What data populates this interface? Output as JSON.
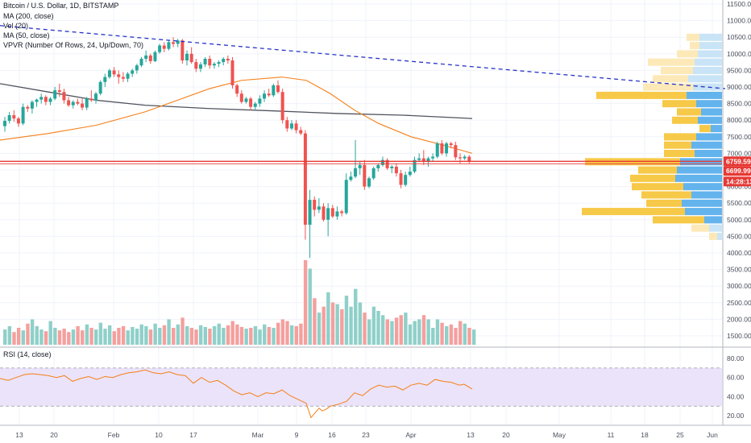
{
  "legend": {
    "title": "Bitcoin / U.S. Dollar, 1D, BITSTAMP",
    "ma200": "MA (200, close)",
    "vol": "Vol (20)",
    "ma50": "MA (50, close)",
    "vpvr": "VPVR (Number Of Rows, 24, Up/Down, 70)",
    "rsi": "RSI (14, close)"
  },
  "colors": {
    "up": "#26a69a",
    "down": "#ef5350",
    "ma200": "#50535e",
    "ma50": "#f57f17",
    "trendline": "#2734c8",
    "hline": "#e53935",
    "rsi": "#f57f17",
    "rsi_band": "#ebe3fa",
    "vpvr_up_val": "#63b3ed",
    "vpvr_dn_val": "#f7c948",
    "vpvr_up_out": "#c9e4f7",
    "vpvr_dn_out": "#fde9b8"
  },
  "price_axis": {
    "labels": [
      "11500.00",
      "11000.00",
      "10500.00",
      "10000.00",
      "9500.00",
      "9000.00",
      "8500.00",
      "8000.00",
      "7500.00",
      "7000.00",
      "6500.00",
      "6000.00",
      "5500.00",
      "5000.00",
      "4500.00",
      "4000.00",
      "3500.00",
      "3000.00",
      "2500.00",
      "2000.00",
      "1500.00"
    ],
    "tags": [
      {
        "text": "6759.59",
        "price": 6759.59,
        "color": "#e53935"
      },
      {
        "text": "6699.99",
        "price": 6470,
        "color": "#e53935"
      },
      {
        "text": "14:28:13",
        "price": 6150,
        "color": "#e53935"
      }
    ]
  },
  "rsi_axis": {
    "labels": [
      "80.00",
      "60.00",
      "40.00",
      "20.00"
    ]
  },
  "time_axis": {
    "labels": [
      "13",
      "20",
      "Feb",
      "10",
      "17",
      "Mar",
      "9",
      "16",
      "23",
      "Apr",
      "13",
      "20",
      "May",
      "11",
      "18",
      "25",
      "Jun"
    ]
  },
  "chart_data": {
    "type": "candlestick",
    "title": "Bitcoin / U.S. Dollar, 1D, BITSTAMP",
    "price_range": [
      1500,
      11500
    ],
    "candles_ohlc": [
      [
        7820,
        8100,
        7650,
        7980
      ],
      [
        7980,
        8250,
        7900,
        8150
      ],
      [
        8150,
        8300,
        7950,
        8050
      ],
      [
        8050,
        8100,
        7800,
        7900
      ],
      [
        7900,
        8500,
        7850,
        8400
      ],
      [
        8400,
        8450,
        8250,
        8350
      ],
      [
        8350,
        8600,
        8200,
        8550
      ],
      [
        8550,
        8650,
        8400,
        8620
      ],
      [
        8620,
        8800,
        8500,
        8700
      ],
      [
        8700,
        8750,
        8450,
        8550
      ],
      [
        8550,
        8700,
        8450,
        8650
      ],
      [
        8650,
        9000,
        8600,
        8900
      ],
      [
        8900,
        9100,
        8700,
        8850
      ],
      [
        8850,
        8950,
        8500,
        8600
      ],
      [
        8600,
        8700,
        8400,
        8450
      ],
      [
        8450,
        8600,
        8350,
        8550
      ],
      [
        8550,
        8650,
        8450,
        8500
      ],
      [
        8500,
        8650,
        8300,
        8380
      ],
      [
        8380,
        8700,
        8300,
        8650
      ],
      [
        8650,
        8900,
        8550,
        8600
      ],
      [
        8600,
        8850,
        8500,
        8800
      ],
      [
        8800,
        9200,
        8750,
        9150
      ],
      [
        9150,
        9400,
        9000,
        9300
      ],
      [
        9300,
        9550,
        9250,
        9500
      ],
      [
        9500,
        9600,
        9300,
        9380
      ],
      [
        9380,
        9500,
        9100,
        9300
      ],
      [
        9300,
        9450,
        9150,
        9250
      ],
      [
        9250,
        9450,
        9150,
        9400
      ],
      [
        9400,
        9550,
        9300,
        9500
      ],
      [
        9500,
        9700,
        9400,
        9650
      ],
      [
        9650,
        9900,
        9600,
        9850
      ],
      [
        9850,
        10100,
        9750,
        9950
      ],
      [
        9950,
        10000,
        9700,
        9780
      ],
      [
        9780,
        10100,
        9750,
        10050
      ],
      [
        10050,
        10300,
        10000,
        10250
      ],
      [
        10250,
        10350,
        10050,
        10150
      ],
      [
        10150,
        10400,
        10100,
        10350
      ],
      [
        10350,
        10500,
        10200,
        10300
      ],
      [
        10300,
        10450,
        10200,
        10400
      ],
      [
        10400,
        10450,
        9700,
        9800
      ],
      [
        9800,
        10100,
        9650,
        10000
      ],
      [
        10000,
        10200,
        9700,
        9750
      ],
      [
        9750,
        9850,
        9450,
        9550
      ],
      [
        9550,
        9750,
        9450,
        9680
      ],
      [
        9680,
        9900,
        9600,
        9850
      ],
      [
        9850,
        9950,
        9550,
        9650
      ],
      [
        9650,
        9750,
        9550,
        9700
      ],
      [
        9700,
        9800,
        9600,
        9750
      ],
      [
        9750,
        9900,
        9650,
        9850
      ],
      [
        9850,
        9950,
        9700,
        9800
      ],
      [
        9800,
        9900,
        8950,
        9050
      ],
      [
        9050,
        9100,
        8700,
        8800
      ],
      [
        8800,
        8900,
        8500,
        8550
      ],
      [
        8550,
        8700,
        8500,
        8650
      ],
      [
        8650,
        8700,
        8300,
        8400
      ],
      [
        8400,
        8550,
        8300,
        8500
      ],
      [
        8500,
        8750,
        8400,
        8650
      ],
      [
        8650,
        8900,
        8550,
        8800
      ],
      [
        8800,
        8950,
        8700,
        8750
      ],
      [
        8750,
        9100,
        8700,
        9050
      ],
      [
        9050,
        9200,
        8800,
        8850
      ],
      [
        8850,
        8950,
        7900,
        8000
      ],
      [
        8000,
        8100,
        7650,
        7750
      ],
      [
        7750,
        8000,
        7700,
        7900
      ],
      [
        7900,
        8000,
        7600,
        7700
      ],
      [
        7700,
        7800,
        7550,
        7600
      ],
      [
        7600,
        7700,
        4400,
        4850
      ],
      [
        4850,
        5900,
        3850,
        5600
      ],
      [
        5600,
        5700,
        5100,
        5300
      ],
      [
        5300,
        5650,
        5200,
        5400
      ],
      [
        5400,
        5500,
        4950,
        5000
      ],
      [
        5000,
        5500,
        4500,
        5350
      ],
      [
        5350,
        5450,
        5050,
        5100
      ],
      [
        5100,
        5400,
        5000,
        5250
      ],
      [
        5250,
        5300,
        5100,
        5200
      ],
      [
        5200,
        6400,
        5150,
        6200
      ],
      [
        6200,
        6450,
        6150,
        6300
      ],
      [
        6300,
        7400,
        6250,
        6550
      ],
      [
        6550,
        6750,
        6350,
        6650
      ],
      [
        6650,
        6800,
        5900,
        6000
      ],
      [
        6000,
        6300,
        5950,
        6250
      ],
      [
        6250,
        6600,
        6200,
        6550
      ],
      [
        6550,
        6700,
        6450,
        6650
      ],
      [
        6650,
        6900,
        6600,
        6800
      ],
      [
        6800,
        6850,
        6500,
        6550
      ],
      [
        6550,
        6650,
        6400,
        6600
      ],
      [
        6600,
        6700,
        6300,
        6400
      ],
      [
        6400,
        6500,
        5950,
        6050
      ],
      [
        6050,
        6450,
        6000,
        6350
      ],
      [
        6350,
        6600,
        6300,
        6450
      ],
      [
        6450,
        6900,
        6400,
        6800
      ],
      [
        6800,
        7000,
        6750,
        6850
      ],
      [
        6850,
        7100,
        6650,
        6750
      ],
      [
        6750,
        6900,
        6600,
        6850
      ],
      [
        6850,
        7000,
        6750,
        6900
      ],
      [
        6900,
        7350,
        6850,
        7300
      ],
      [
        7300,
        7400,
        6950,
        7000
      ],
      [
        7000,
        7350,
        6900,
        7300
      ],
      [
        7300,
        7350,
        7150,
        7250
      ],
      [
        7250,
        7350,
        6800,
        6880
      ],
      [
        6880,
        7000,
        6700,
        6850
      ],
      [
        6850,
        6950,
        6800,
        6900
      ],
      [
        6900,
        6950,
        6700,
        6760
      ]
    ],
    "ma200": [
      [
        0,
        9100
      ],
      [
        60,
        8850
      ],
      [
        120,
        8600
      ],
      [
        180,
        8450
      ],
      [
        260,
        8350
      ],
      [
        340,
        8280
      ],
      [
        420,
        8200
      ],
      [
        500,
        8150
      ],
      [
        586,
        8050
      ]
    ],
    "ma50": [
      [
        0,
        7400
      ],
      [
        60,
        7600
      ],
      [
        120,
        7850
      ],
      [
        180,
        8250
      ],
      [
        220,
        8600
      ],
      [
        260,
        8950
      ],
      [
        300,
        9200
      ],
      [
        350,
        9300
      ],
      [
        380,
        9200
      ],
      [
        410,
        8800
      ],
      [
        440,
        8300
      ],
      [
        470,
        7900
      ],
      [
        510,
        7500
      ],
      [
        550,
        7250
      ],
      [
        586,
        7000
      ]
    ],
    "volumes_scaled": [
      0.18,
      0.22,
      0.15,
      0.2,
      0.17,
      0.25,
      0.3,
      0.22,
      0.18,
      0.16,
      0.28,
      0.2,
      0.17,
      0.19,
      0.15,
      0.18,
      0.22,
      0.17,
      0.24,
      0.2,
      0.18,
      0.26,
      0.19,
      0.23,
      0.16,
      0.2,
      0.22,
      0.17,
      0.21,
      0.19,
      0.24,
      0.22,
      0.18,
      0.25,
      0.2,
      0.23,
      0.3,
      0.2,
      0.24,
      0.32,
      0.22,
      0.2,
      0.18,
      0.23,
      0.21,
      0.19,
      0.22,
      0.25,
      0.2,
      0.23,
      0.28,
      0.24,
      0.21,
      0.19,
      0.2,
      0.22,
      0.18,
      0.24,
      0.21,
      0.2,
      0.26,
      0.3,
      0.28,
      0.23,
      0.22,
      0.25,
      1.0,
      0.9,
      0.55,
      0.38,
      0.45,
      0.62,
      0.5,
      0.48,
      0.42,
      0.58,
      0.45,
      0.66,
      0.5,
      0.38,
      0.3,
      0.45,
      0.4,
      0.35,
      0.3,
      0.28,
      0.32,
      0.35,
      0.38,
      0.24,
      0.28,
      0.3,
      0.35,
      0.3,
      0.2,
      0.3,
      0.26,
      0.22,
      0.24,
      0.2,
      0.28,
      0.25,
      0.2,
      0.18
    ],
    "rsi_range": [
      10,
      80
    ],
    "rsi_levels": [
      70,
      30
    ],
    "rsi": [
      [
        0,
        59
      ],
      [
        10,
        57
      ],
      [
        20,
        60
      ],
      [
        30,
        63
      ],
      [
        40,
        64
      ],
      [
        50,
        63
      ],
      [
        60,
        62
      ],
      [
        70,
        60
      ],
      [
        80,
        62
      ],
      [
        90,
        56
      ],
      [
        100,
        59
      ],
      [
        110,
        61
      ],
      [
        120,
        58
      ],
      [
        130,
        61
      ],
      [
        140,
        60
      ],
      [
        150,
        63
      ],
      [
        160,
        65
      ],
      [
        170,
        66
      ],
      [
        180,
        68
      ],
      [
        190,
        65
      ],
      [
        200,
        64
      ],
      [
        210,
        66
      ],
      [
        220,
        63
      ],
      [
        230,
        62
      ],
      [
        240,
        54
      ],
      [
        250,
        60
      ],
      [
        260,
        55
      ],
      [
        270,
        57
      ],
      [
        280,
        52
      ],
      [
        290,
        46
      ],
      [
        300,
        42
      ],
      [
        310,
        44
      ],
      [
        320,
        40
      ],
      [
        330,
        44
      ],
      [
        340,
        43
      ],
      [
        350,
        47
      ],
      [
        360,
        41
      ],
      [
        370,
        37
      ],
      [
        380,
        33
      ],
      [
        386,
        18
      ],
      [
        390,
        22
      ],
      [
        396,
        28
      ],
      [
        400,
        25
      ],
      [
        405,
        27
      ],
      [
        410,
        30
      ],
      [
        420,
        32
      ],
      [
        430,
        35
      ],
      [
        440,
        44
      ],
      [
        450,
        41
      ],
      [
        460,
        48
      ],
      [
        470,
        52
      ],
      [
        480,
        50
      ],
      [
        490,
        51
      ],
      [
        500,
        47
      ],
      [
        510,
        52
      ],
      [
        520,
        54
      ],
      [
        530,
        52
      ],
      [
        540,
        58
      ],
      [
        550,
        56
      ],
      [
        560,
        55
      ],
      [
        570,
        52
      ],
      [
        576,
        53
      ],
      [
        586,
        48
      ]
    ],
    "trendline": [
      [
        0,
        10850
      ],
      [
        900,
        8950
      ]
    ],
    "hline_price": 6759.59,
    "vpvr": [
      {
        "p": 10500,
        "up": 28,
        "dn": 16
      },
      {
        "p": 10250,
        "up": 28,
        "dn": 12
      },
      {
        "p": 10000,
        "up": 30,
        "dn": 26
      },
      {
        "p": 9750,
        "up": 34,
        "dn": 58
      },
      {
        "p": 9500,
        "up": 36,
        "dn": 40
      },
      {
        "p": 9250,
        "up": 42,
        "dn": 44
      },
      {
        "p": 9000,
        "up": 36,
        "dn": 62
      },
      {
        "p": 8750,
        "up": 44,
        "dn": 112
      },
      {
        "p": 8500,
        "up": 32,
        "dn": 42
      },
      {
        "p": 8250,
        "up": 26,
        "dn": 30
      },
      {
        "p": 8000,
        "up": 30,
        "dn": 32
      },
      {
        "p": 7750,
        "up": 14,
        "dn": 14
      },
      {
        "p": 7500,
        "up": 32,
        "dn": 40
      },
      {
        "p": 7250,
        "up": 38,
        "dn": 34
      },
      {
        "p": 7000,
        "up": 34,
        "dn": 38
      },
      {
        "p": 6750,
        "up": 52,
        "dn": 118
      },
      {
        "p": 6500,
        "up": 56,
        "dn": 48
      },
      {
        "p": 6250,
        "up": 58,
        "dn": 56
      },
      {
        "p": 6000,
        "up": 48,
        "dn": 64
      },
      {
        "p": 5750,
        "up": 38,
        "dn": 62
      },
      {
        "p": 5500,
        "up": 50,
        "dn": 44
      },
      {
        "p": 5250,
        "up": 46,
        "dn": 128
      },
      {
        "p": 5000,
        "up": 22,
        "dn": 64
      },
      {
        "p": 4750,
        "up": 16,
        "dn": 22
      },
      {
        "p": 4500,
        "up": 6,
        "dn": 10
      }
    ]
  }
}
